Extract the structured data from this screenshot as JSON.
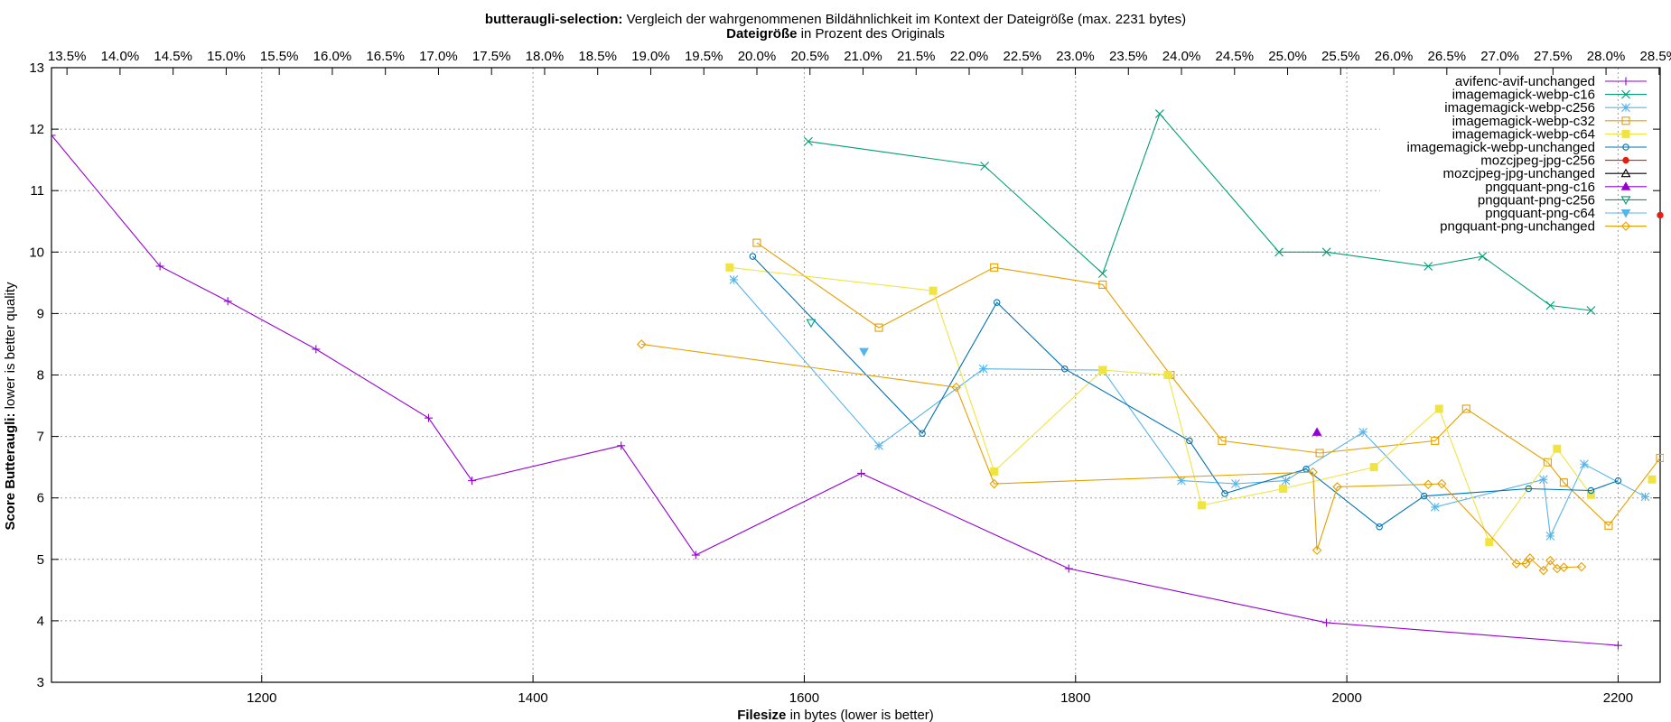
{
  "chart_data": {
    "type": "line",
    "title_bold": "butteraugli-selection:",
    "title_rest": " Vergleich der wahrgenommenen Bildähnlichkeit im Kontext der Dateigröße (max. 2231 bytes)",
    "x2label_bold": "Dateigröße",
    "x2label_rest": " in Prozent des Originals",
    "xlabel_bold": "Filesize",
    "xlabel_rest": " in bytes (lower is better)",
    "ylabel_bold": "Score Butteraugli:",
    "ylabel_rest": " lower is better quality",
    "xlim": [
      1045,
      2231
    ],
    "ylim": [
      3,
      13
    ],
    "xticks": [
      1200,
      1400,
      1600,
      1800,
      2000,
      2200
    ],
    "yticks": [
      3,
      4,
      5,
      6,
      7,
      8,
      9,
      10,
      11,
      12,
      13
    ],
    "x2ticks": [
      "13.5%",
      "14.0%",
      "14.5%",
      "15.0%",
      "15.5%",
      "16.0%",
      "16.5%",
      "17.0%",
      "17.5%",
      "18.0%",
      "18.5%",
      "19.0%",
      "19.5%",
      "20.0%",
      "20.5%",
      "21.0%",
      "21.5%",
      "22.0%",
      "22.5%",
      "23.0%",
      "23.5%",
      "24.0%",
      "24.5%",
      "25.0%",
      "25.5%",
      "26.0%",
      "26.5%",
      "27.0%",
      "27.5%",
      "28.0%",
      "28.5%"
    ],
    "x2_pct_per_byte": 0.012779,
    "grid": true,
    "legend_position": "top-right",
    "series": [
      {
        "name": "avifenc-avif-unchanged",
        "color": "#9400d3",
        "marker": "plus",
        "points": [
          [
            1045,
            11.9
          ],
          [
            1125,
            9.77
          ],
          [
            1175,
            9.2
          ],
          [
            1240,
            8.42
          ],
          [
            1323,
            7.3
          ],
          [
            1355,
            6.28
          ],
          [
            1465,
            6.85
          ],
          [
            1520,
            5.07
          ],
          [
            1642,
            6.4
          ],
          [
            1795,
            4.85
          ],
          [
            1985,
            3.97
          ],
          [
            2200,
            3.6
          ]
        ]
      },
      {
        "name": "imagemagick-webp-c16",
        "color": "#009e73",
        "marker": "cross",
        "points": [
          [
            1603,
            11.8
          ],
          [
            1733,
            11.4
          ],
          [
            1820,
            9.65
          ],
          [
            1862,
            12.25
          ],
          [
            1950,
            10.0
          ],
          [
            1985,
            10.0
          ],
          [
            2060,
            9.77
          ],
          [
            2100,
            9.93
          ],
          [
            2150,
            9.13
          ],
          [
            2180,
            9.05
          ]
        ]
      },
      {
        "name": "imagemagick-webp-c256",
        "color": "#56b4e9",
        "marker": "star",
        "points": [
          [
            1548,
            9.55
          ],
          [
            1655,
            6.85
          ],
          [
            1732,
            8.1
          ],
          [
            1820,
            8.08
          ],
          [
            1878,
            6.28
          ],
          [
            1918,
            6.23
          ],
          [
            1955,
            6.28
          ],
          [
            2012,
            7.07
          ],
          [
            2065,
            5.85
          ],
          [
            2145,
            6.3
          ],
          [
            2150,
            5.38
          ],
          [
            2175,
            6.55
          ],
          [
            2220,
            6.02
          ]
        ]
      },
      {
        "name": "imagemagick-webp-c32",
        "color": "#e69f00",
        "marker": "square",
        "points": [
          [
            1565,
            10.15
          ],
          [
            1655,
            8.77
          ],
          [
            1740,
            9.75
          ],
          [
            1820,
            9.47
          ],
          [
            1870,
            8.0
          ],
          [
            1908,
            6.93
          ],
          [
            1980,
            6.73
          ],
          [
            2065,
            6.93
          ],
          [
            2088,
            7.45
          ],
          [
            2148,
            6.58
          ],
          [
            2160,
            6.25
          ],
          [
            2193,
            5.55
          ],
          [
            2231,
            6.65
          ]
        ]
      },
      {
        "name": "imagemagick-webp-c64",
        "color": "#f0e442",
        "marker": "filled-square",
        "points": [
          [
            1545,
            9.75
          ],
          [
            1695,
            9.37
          ],
          [
            1740,
            6.43
          ],
          [
            1820,
            8.08
          ],
          [
            1868,
            8.0
          ],
          [
            1893,
            5.88
          ],
          [
            1953,
            6.15
          ],
          [
            2020,
            6.5
          ],
          [
            2068,
            7.45
          ],
          [
            2105,
            5.28
          ],
          [
            2155,
            6.8
          ],
          [
            2180,
            6.05
          ]
        ],
        "extra_points": [
          [
            2225,
            6.3
          ]
        ]
      },
      {
        "name": "imagemagick-webp-unchanged",
        "color": "#0072b2",
        "marker": "circle",
        "points": [
          [
            1562,
            9.93
          ],
          [
            1687,
            7.05
          ],
          [
            1742,
            9.18
          ],
          [
            1792,
            8.1
          ],
          [
            1884,
            6.93
          ],
          [
            1910,
            6.07
          ],
          [
            1970,
            6.47
          ],
          [
            2024,
            5.53
          ],
          [
            2057,
            6.03
          ],
          [
            2134,
            6.15
          ],
          [
            2180,
            6.12
          ],
          [
            2200,
            6.28
          ]
        ]
      },
      {
        "name": "mozcjpeg-jpg-c256",
        "color": "#e51e10",
        "marker": "filled-circle",
        "points": [
          [
            2231,
            10.6
          ]
        ]
      },
      {
        "name": "mozcjpeg-jpg-unchanged",
        "color": "#000000",
        "marker": "triangle",
        "points": []
      },
      {
        "name": "pngquant-png-c16",
        "color": "#9400d3",
        "marker": "filled-triangle",
        "points": [
          [
            1978,
            7.07
          ]
        ]
      },
      {
        "name": "pngquant-png-c256",
        "color": "#009e73",
        "marker": "triangle-down",
        "points": [
          [
            1605,
            8.85
          ]
        ]
      },
      {
        "name": "pngquant-png-c64",
        "color": "#56b4e9",
        "marker": "filled-triangle-down",
        "points": [
          [
            1644,
            8.38
          ]
        ]
      },
      {
        "name": "pngquant-png-unchanged",
        "color": "#e69f00",
        "marker": "diamond",
        "points": [
          [
            1480,
            8.5
          ],
          [
            1712,
            7.8
          ],
          [
            1740,
            6.23
          ],
          [
            1975,
            6.42
          ],
          [
            1978,
            5.15
          ],
          [
            1993,
            6.18
          ],
          [
            2060,
            6.22
          ],
          [
            2070,
            6.23
          ],
          [
            2125,
            4.93
          ],
          [
            2132,
            4.93
          ],
          [
            2135,
            5.02
          ],
          [
            2145,
            4.82
          ],
          [
            2150,
            4.98
          ],
          [
            2155,
            4.85
          ],
          [
            2160,
            4.87
          ],
          [
            2173,
            4.88
          ]
        ]
      }
    ]
  }
}
